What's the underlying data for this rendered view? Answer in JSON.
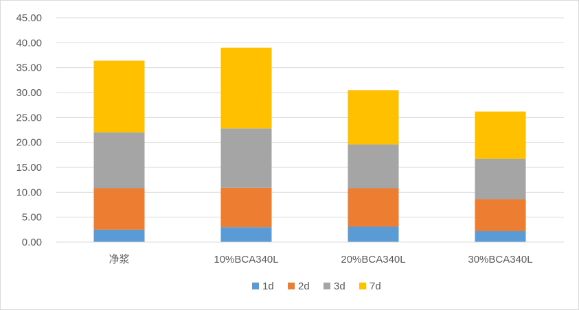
{
  "chart_data": {
    "type": "bar",
    "stacked": true,
    "title": "",
    "xlabel": "",
    "ylabel": "",
    "categories": [
      "净浆",
      "10%BCA340L",
      "20%BCA340L",
      "30%BCA340L"
    ],
    "series": [
      {
        "name": "1d",
        "values": [
          2.5,
          3.0,
          3.1,
          2.2
        ],
        "color": "#5b9bd5"
      },
      {
        "name": "2d",
        "values": [
          8.3,
          7.9,
          7.7,
          6.4
        ],
        "color": "#ed7d31"
      },
      {
        "name": "3d",
        "values": [
          11.2,
          11.9,
          8.8,
          8.1
        ],
        "color": "#a5a5a5"
      },
      {
        "name": "7d",
        "values": [
          14.4,
          16.2,
          10.9,
          9.5
        ],
        "color": "#ffc000"
      }
    ],
    "ylim": [
      0,
      45
    ],
    "yticks": [
      "0.00",
      "5.00",
      "10.00",
      "15.00",
      "20.00",
      "25.00",
      "30.00",
      "35.00",
      "40.00",
      "45.00"
    ],
    "grid": true,
    "legend_position": "bottom"
  }
}
